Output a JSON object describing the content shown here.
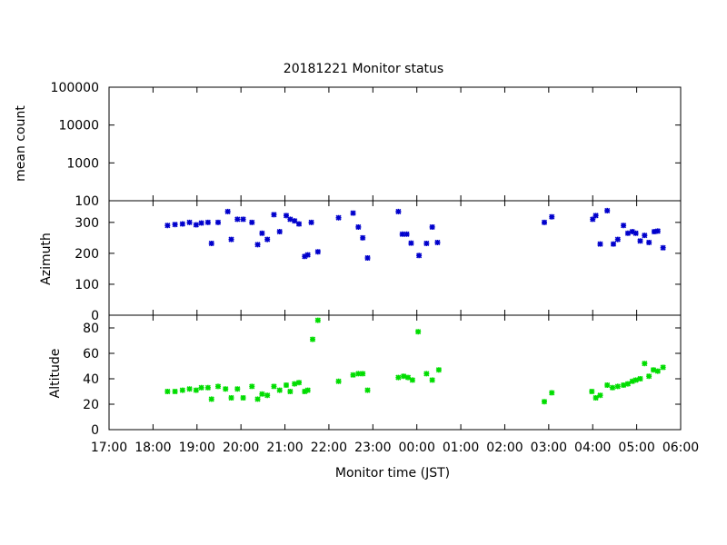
{
  "chart_data": {
    "type": "scatter",
    "title": "20181221 Monitor status",
    "xlabel": "Monitor time (JST)",
    "x_ticks": [
      "17:00",
      "18:00",
      "19:00",
      "20:00",
      "21:00",
      "22:00",
      "23:00",
      "00:00",
      "01:00",
      "02:00",
      "03:00",
      "04:00",
      "05:00",
      "06:00"
    ],
    "x_range_hours": [
      17,
      30
    ],
    "panels": [
      {
        "ylabel": "mean count",
        "scale": "log",
        "ylim": [
          100,
          100000
        ],
        "y_ticks": [
          "100",
          "1000",
          "10000",
          "100000"
        ],
        "points": []
      },
      {
        "ylabel": "Azimuth",
        "ylim": [
          0,
          370
        ],
        "y_ticks": [
          "0",
          "100",
          "200",
          "300"
        ],
        "color": "#0000cc",
        "points": [
          [
            18.33,
            290
          ],
          [
            18.5,
            293
          ],
          [
            18.67,
            295
          ],
          [
            18.83,
            300
          ],
          [
            18.98,
            292
          ],
          [
            19.1,
            298
          ],
          [
            19.25,
            300
          ],
          [
            19.33,
            232
          ],
          [
            19.48,
            300
          ],
          [
            19.7,
            335
          ],
          [
            19.78,
            245
          ],
          [
            19.92,
            310
          ],
          [
            20.05,
            310
          ],
          [
            20.25,
            300
          ],
          [
            20.38,
            228
          ],
          [
            20.48,
            265
          ],
          [
            20.6,
            245
          ],
          [
            20.75,
            325
          ],
          [
            20.88,
            270
          ],
          [
            21.03,
            322
          ],
          [
            21.12,
            310
          ],
          [
            21.22,
            305
          ],
          [
            21.32,
            295
          ],
          [
            21.45,
            190
          ],
          [
            21.52,
            195
          ],
          [
            21.6,
            300
          ],
          [
            21.75,
            205
          ],
          [
            22.22,
            315
          ],
          [
            22.55,
            330
          ],
          [
            22.67,
            285
          ],
          [
            22.77,
            250
          ],
          [
            22.88,
            185
          ],
          [
            23.58,
            335
          ],
          [
            23.67,
            262
          ],
          [
            23.77,
            262
          ],
          [
            23.87,
            233
          ],
          [
            24.05,
            193
          ],
          [
            24.22,
            232
          ],
          [
            24.35,
            285
          ],
          [
            24.47,
            235
          ],
          [
            26.9,
            300
          ],
          [
            27.07,
            318
          ],
          [
            28.0,
            310
          ],
          [
            28.07,
            322
          ],
          [
            28.17,
            230
          ],
          [
            28.33,
            338
          ],
          [
            28.47,
            230
          ],
          [
            28.57,
            245
          ],
          [
            28.7,
            290
          ],
          [
            28.8,
            265
          ],
          [
            28.9,
            270
          ],
          [
            28.98,
            265
          ],
          [
            29.08,
            240
          ],
          [
            29.18,
            258
          ],
          [
            29.28,
            235
          ],
          [
            29.4,
            270
          ],
          [
            29.48,
            272
          ],
          [
            29.6,
            218
          ]
        ]
      },
      {
        "ylabel": "Altitude",
        "ylim": [
          0,
          90
        ],
        "y_ticks": [
          "0",
          "20",
          "40",
          "60",
          "80"
        ],
        "color": "#00dd00",
        "points": [
          [
            18.33,
            30
          ],
          [
            18.5,
            30
          ],
          [
            18.67,
            31
          ],
          [
            18.83,
            32
          ],
          [
            18.98,
            31
          ],
          [
            19.1,
            33
          ],
          [
            19.25,
            33
          ],
          [
            19.33,
            24
          ],
          [
            19.48,
            34
          ],
          [
            19.65,
            32
          ],
          [
            19.78,
            25
          ],
          [
            19.92,
            32
          ],
          [
            20.05,
            25
          ],
          [
            20.25,
            34
          ],
          [
            20.38,
            24
          ],
          [
            20.48,
            28
          ],
          [
            20.6,
            27
          ],
          [
            20.75,
            34
          ],
          [
            20.88,
            31
          ],
          [
            21.03,
            35
          ],
          [
            21.12,
            30
          ],
          [
            21.22,
            36
          ],
          [
            21.32,
            37
          ],
          [
            21.45,
            30
          ],
          [
            21.52,
            31
          ],
          [
            21.63,
            71
          ],
          [
            21.75,
            86
          ],
          [
            22.22,
            38
          ],
          [
            22.55,
            43
          ],
          [
            22.67,
            44
          ],
          [
            22.77,
            44
          ],
          [
            22.88,
            31
          ],
          [
            23.58,
            41
          ],
          [
            23.7,
            42
          ],
          [
            23.8,
            41
          ],
          [
            23.9,
            39
          ],
          [
            24.03,
            77
          ],
          [
            24.22,
            44
          ],
          [
            24.35,
            39
          ],
          [
            24.5,
            47
          ],
          [
            26.9,
            22
          ],
          [
            27.07,
            29
          ],
          [
            27.98,
            30
          ],
          [
            28.07,
            25
          ],
          [
            28.17,
            27
          ],
          [
            28.33,
            35
          ],
          [
            28.45,
            33
          ],
          [
            28.57,
            34
          ],
          [
            28.7,
            35
          ],
          [
            28.8,
            36
          ],
          [
            28.9,
            38
          ],
          [
            28.98,
            39
          ],
          [
            29.08,
            40
          ],
          [
            29.18,
            52
          ],
          [
            29.28,
            42
          ],
          [
            29.38,
            47
          ],
          [
            29.48,
            46
          ],
          [
            29.6,
            49
          ]
        ]
      }
    ]
  }
}
